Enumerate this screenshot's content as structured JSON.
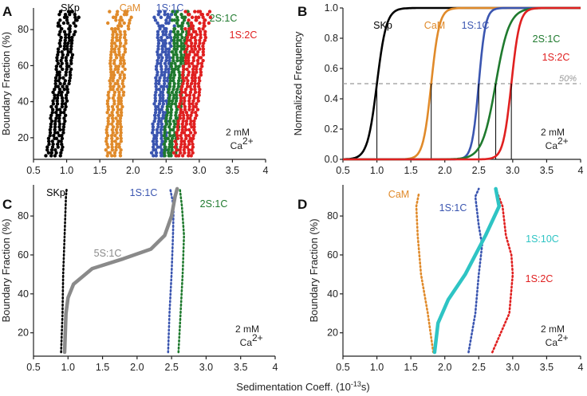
{
  "figure": {
    "x_axis_title": "Sedimentation Coeff. (10",
    "x_axis_exponent": "-13",
    "x_axis_unit": "s)"
  },
  "chart_data": [
    {
      "panel": "A",
      "type": "scatter",
      "ylabel": "Boundary Fraction (%)",
      "xlim": [
        0.5,
        4
      ],
      "ylim": [
        8,
        92
      ],
      "xticks": [
        "0.5",
        "1.0",
        "1.5",
        "2.0",
        "2.5",
        "3.0",
        "3.5",
        "4"
      ],
      "yticks": [
        20,
        40,
        60,
        80
      ],
      "condition": [
        "2 mM",
        "Ca"
      ],
      "condition_superscript": "2+",
      "series": [
        {
          "name": "SKp",
          "color": "#000000",
          "s_at_bottom": 0.8,
          "s_at_top": 1.05,
          "traces": 4,
          "spread": 0.2
        },
        {
          "name": "CaM",
          "color": "#e08a2a",
          "s_at_bottom": 1.7,
          "s_at_top": 1.8,
          "traces": 4,
          "spread": 0.2
        },
        {
          "name": "1S:1C",
          "color": "#3a55b0",
          "s_at_bottom": 2.38,
          "s_at_top": 2.5,
          "traces": 4,
          "spread": 0.18
        },
        {
          "name": "2S:1C",
          "color": "#1f7a2e",
          "s_at_bottom": 2.55,
          "s_at_top": 2.75,
          "traces": 4,
          "spread": 0.18
        },
        {
          "name": "1S:2C",
          "color": "#e02020",
          "s_at_bottom": 2.75,
          "s_at_top": 3.0,
          "traces": 5,
          "spread": 0.25
        }
      ]
    },
    {
      "panel": "B",
      "type": "line",
      "ylabel": "Normalized Frequency",
      "xlim": [
        0.5,
        4
      ],
      "ylim": [
        0,
        1.0
      ],
      "xticks": [
        "0.5",
        "1.0",
        "1.5",
        "2.0",
        "2.5",
        "3.0",
        "3.5",
        "4"
      ],
      "yticks": [
        "0.0",
        "0.2",
        "0.4",
        "0.6",
        "0.8",
        "1.0"
      ],
      "reference_line": {
        "y": 0.5,
        "label": "50%"
      },
      "condition": [
        "2 mM",
        "Ca"
      ],
      "condition_superscript": "2+",
      "series": [
        {
          "name": "SKp",
          "color": "#000000",
          "median": 1.0,
          "width": 0.07
        },
        {
          "name": "CaM",
          "color": "#e08a2a",
          "median": 1.8,
          "width": 0.06
        },
        {
          "name": "1S:1C",
          "color": "#3a55b0",
          "median": 2.5,
          "width": 0.05
        },
        {
          "name": "2S:1C",
          "color": "#1f7a2e",
          "median": 2.75,
          "width": 0.1
        },
        {
          "name": "1S:2C",
          "color": "#e02020",
          "median": 2.98,
          "width": 0.06
        }
      ]
    },
    {
      "panel": "C",
      "type": "line",
      "ylabel": "Boundary Fraction (%)",
      "xlim": [
        0.5,
        4
      ],
      "ylim": [
        8,
        96
      ],
      "xticks": [
        "0.5",
        "1.0",
        "1.5",
        "2.0",
        "2.5",
        "3.0",
        "3.5",
        "4"
      ],
      "yticks": [
        20,
        40,
        60,
        80
      ],
      "condition": [
        "2 mM",
        "Ca"
      ],
      "condition_superscript": "2+",
      "series": [
        {
          "name": "SKp",
          "color": "#000000",
          "style": "dotted",
          "points": [
            [
              0.9,
              10
            ],
            [
              0.92,
              30
            ],
            [
              0.93,
              50
            ],
            [
              0.95,
              70
            ],
            [
              0.97,
              90
            ],
            [
              0.98,
              94
            ]
          ]
        },
        {
          "name": "1S:1C",
          "color": "#3a55b0",
          "style": "dotted",
          "points": [
            [
              2.45,
              10
            ],
            [
              2.47,
              30
            ],
            [
              2.5,
              50
            ],
            [
              2.52,
              70
            ],
            [
              2.53,
              85
            ],
            [
              2.48,
              94
            ]
          ]
        },
        {
          "name": "2S:1C",
          "color": "#1f7a2e",
          "style": "dotted",
          "points": [
            [
              2.6,
              10
            ],
            [
              2.63,
              30
            ],
            [
              2.66,
              50
            ],
            [
              2.68,
              70
            ],
            [
              2.65,
              85
            ],
            [
              2.62,
              94
            ]
          ]
        },
        {
          "name": "5S:1C",
          "color": "#8a8a8a",
          "style": "solid",
          "points": [
            [
              0.95,
              10
            ],
            [
              0.97,
              30
            ],
            [
              1.0,
              38
            ],
            [
              1.08,
              45
            ],
            [
              1.35,
              53
            ],
            [
              1.8,
              58
            ],
            [
              2.2,
              63
            ],
            [
              2.4,
              70
            ],
            [
              2.5,
              80
            ],
            [
              2.55,
              90
            ],
            [
              2.58,
              94
            ]
          ]
        }
      ]
    },
    {
      "panel": "D",
      "type": "line",
      "ylabel": "Boundary Fraction (%)",
      "xlim": [
        0.5,
        4
      ],
      "ylim": [
        8,
        96
      ],
      "xticks": [
        "0.5",
        "1.0",
        "1.5",
        "2.0",
        "2.5",
        "3.0",
        "3.5",
        "4"
      ],
      "yticks": [
        20,
        40,
        60,
        80
      ],
      "condition": [
        "2 mM",
        "Ca"
      ],
      "condition_superscript": "2+",
      "series": [
        {
          "name": "CaM",
          "color": "#e08a2a",
          "style": "dotted",
          "points": [
            [
              1.83,
              10
            ],
            [
              1.75,
              30
            ],
            [
              1.65,
              50
            ],
            [
              1.6,
              70
            ],
            [
              1.58,
              85
            ],
            [
              1.62,
              92
            ]
          ]
        },
        {
          "name": "1S:1C",
          "color": "#3a55b0",
          "style": "dotted",
          "points": [
            [
              2.35,
              10
            ],
            [
              2.45,
              30
            ],
            [
              2.5,
              50
            ],
            [
              2.55,
              65
            ],
            [
              2.5,
              75
            ],
            [
              2.45,
              90
            ],
            [
              2.5,
              94
            ]
          ]
        },
        {
          "name": "1S:2C",
          "color": "#e02020",
          "style": "dotted",
          "points": [
            [
              2.7,
              10
            ],
            [
              2.95,
              30
            ],
            [
              3.0,
              50
            ],
            [
              2.98,
              60
            ],
            [
              2.9,
              70
            ],
            [
              2.85,
              85
            ],
            [
              2.75,
              94
            ]
          ]
        },
        {
          "name": "1S:10C",
          "color": "#2ec4c4",
          "style": "solid",
          "points": [
            [
              1.85,
              10
            ],
            [
              1.9,
              25
            ],
            [
              2.05,
              37
            ],
            [
              2.3,
              50
            ],
            [
              2.45,
              60
            ],
            [
              2.6,
              70
            ],
            [
              2.8,
              85
            ],
            [
              2.75,
              94
            ]
          ]
        }
      ]
    }
  ]
}
